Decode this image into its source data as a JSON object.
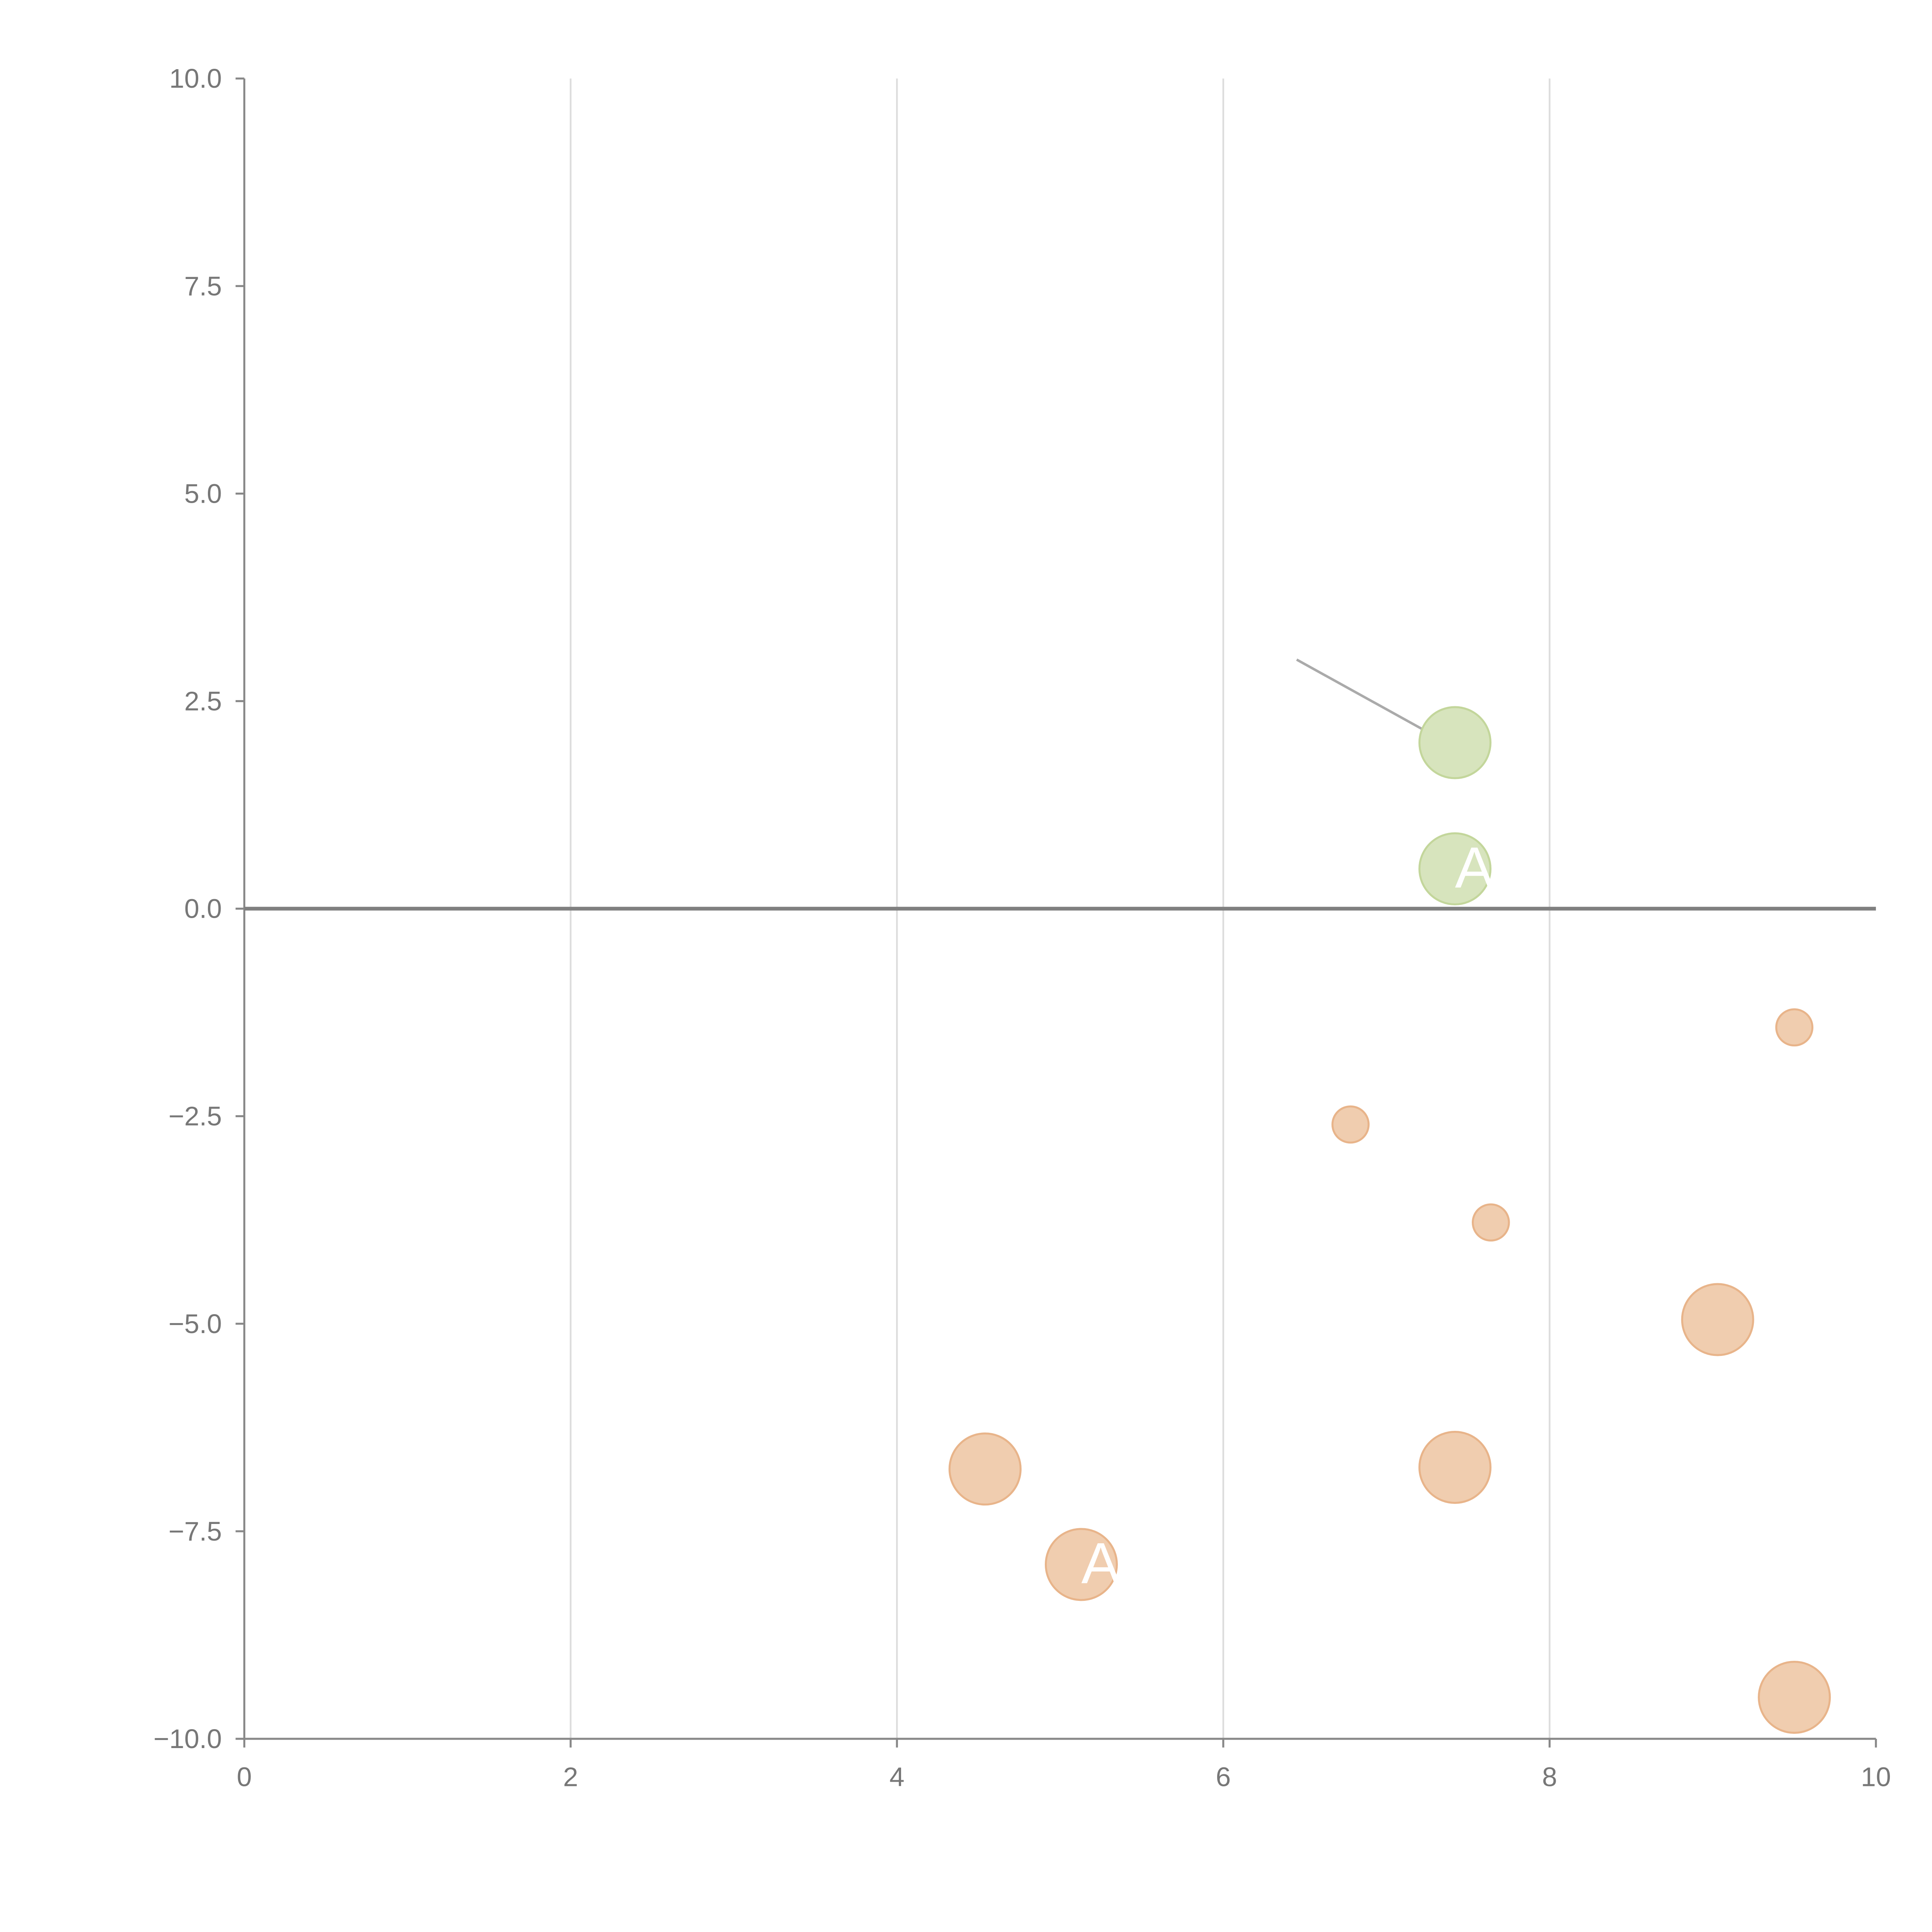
{
  "chart_data": {
    "type": "scatter",
    "title": "",
    "xlabel": "",
    "ylabel": "",
    "xlim": [
      0,
      10
    ],
    "ylim": [
      -10,
      10
    ],
    "x_ticks": [
      "0",
      "2",
      "4",
      "6",
      "8",
      "10"
    ],
    "x_tick_values": [
      0,
      2,
      4,
      6,
      8,
      10
    ],
    "y_ticks": [
      "10.0",
      "7.5",
      "5.0",
      "2.5",
      "0.0",
      "−2.5",
      "−5.0",
      "−7.5",
      "−10.0"
    ],
    "y_tick_values": [
      10,
      7.5,
      5,
      2.5,
      0,
      -2.5,
      -5,
      -7.5,
      -10
    ],
    "vertical_grid": true,
    "horizontal_grid": false,
    "zero_line": true,
    "colors": {
      "positive_fill": "#d7e4bd",
      "positive_stroke": "#c3d69b",
      "negative_fill": "#f0cdaf",
      "negative_stroke": "#e8b48a",
      "grid": "#dddddd",
      "axis": "#888888",
      "zero_line": "#808080",
      "leader": "#aaaaaa"
    },
    "points": [
      {
        "x": 7.42,
        "y": 2.0,
        "size": "large",
        "group": "positive",
        "label": "",
        "leader_to": [
          6.45,
          3.0
        ]
      },
      {
        "x": 7.42,
        "y": 0.48,
        "size": "large",
        "group": "positive",
        "label": "A"
      },
      {
        "x": 9.5,
        "y": -1.43,
        "size": "small",
        "group": "negative",
        "label": ""
      },
      {
        "x": 6.78,
        "y": -2.6,
        "size": "small",
        "group": "negative",
        "label": ""
      },
      {
        "x": 7.64,
        "y": -3.78,
        "size": "small",
        "group": "negative",
        "label": ""
      },
      {
        "x": 9.03,
        "y": -4.95,
        "size": "large",
        "group": "negative",
        "label": ""
      },
      {
        "x": 4.54,
        "y": -6.75,
        "size": "large",
        "group": "negative",
        "label": ""
      },
      {
        "x": 7.42,
        "y": -6.73,
        "size": "large",
        "group": "negative",
        "label": ""
      },
      {
        "x": 5.13,
        "y": -7.9,
        "size": "large",
        "group": "negative",
        "label": "A"
      },
      {
        "x": 9.5,
        "y": -9.5,
        "size": "large",
        "group": "negative",
        "label": ""
      }
    ]
  }
}
